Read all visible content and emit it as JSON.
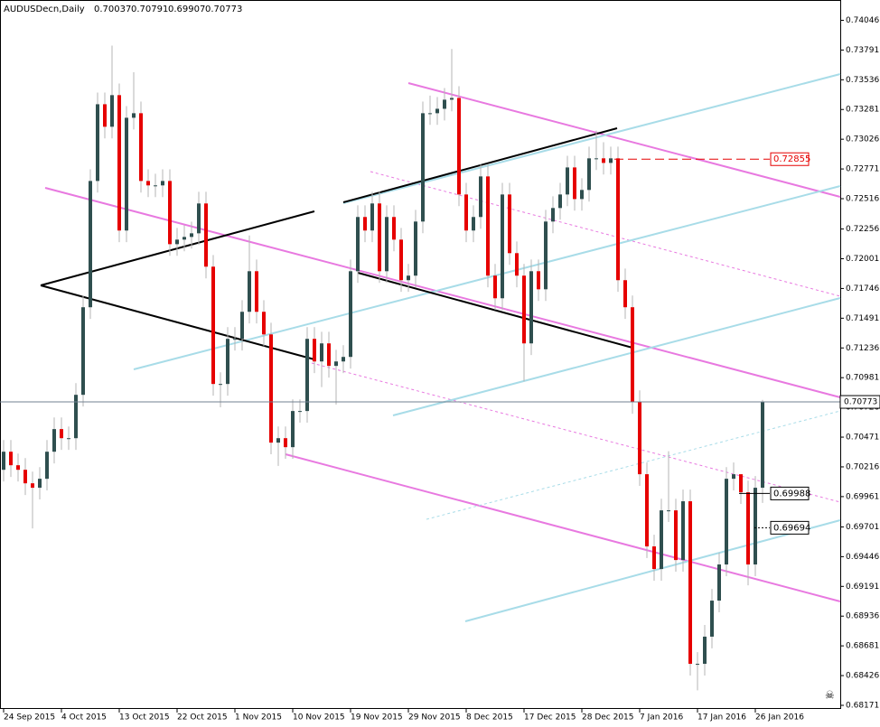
{
  "chart_data": {
    "type": "candlestick",
    "title": "AUDUSDecn,Daily",
    "categories": [
      "24 Sep 2015",
      null,
      null,
      null,
      null,
      null,
      null,
      null,
      "4 Oct 2015",
      null,
      null,
      null,
      null,
      null,
      null,
      null,
      "13 Oct 2015",
      null,
      null,
      null,
      null,
      null,
      null,
      null,
      "22 Oct 2015",
      null,
      null,
      null,
      null,
      null,
      null,
      null,
      "1 Nov 2015",
      null,
      null,
      null,
      null,
      null,
      null,
      null,
      "10 Nov 2015",
      null,
      null,
      null,
      null,
      null,
      null,
      null,
      "19 Nov 2015",
      null,
      null,
      null,
      null,
      null,
      null,
      null,
      "29 Nov 2015",
      null,
      null,
      null,
      null,
      null,
      null,
      null,
      "8 Dec 2015",
      null,
      null,
      null,
      null,
      null,
      null,
      null,
      "17 Dec 2015",
      null,
      null,
      null,
      null,
      null,
      null,
      null,
      "28 Dec 2015",
      null,
      null,
      null,
      null,
      null,
      null,
      null,
      "7 Jan 2016",
      null,
      null,
      null,
      null,
      null,
      null,
      null,
      "17 Jan 2016",
      null,
      null,
      null,
      null,
      null,
      null,
      null,
      "26 Jan 2016",
      null
    ],
    "open": [
      0.70191,
      0.70346,
      0.7023,
      0.70191,
      0.70075,
      0.70037,
      0.70114,
      0.70346,
      0.7054,
      0.70462,
      0.70462,
      0.70834,
      0.71585,
      0.72668,
      0.73326,
      0.73133,
      0.73404,
      0.72243,
      0.7321,
      0.73249,
      0.72668,
      0.7263,
      0.7263,
      0.72668,
      0.72126,
      0.72165,
      0.72188,
      0.72219,
      0.72475,
      0.71933,
      0.70927,
      0.70927,
      0.71314,
      0.71314,
      0.71546,
      0.71894,
      0.71546,
      0.71352,
      0.70424,
      0.70462,
      0.70385,
      0.70695,
      0.70695,
      0.71314,
      0.7112,
      0.71275,
      0.71082,
      0.7112,
      0.71159,
      0.71894,
      0.72359,
      0.72243,
      0.72475,
      0.71894,
      0.72359,
      0.72165,
      0.71817,
      0.71856,
      0.7232,
      0.73249,
      0.73249,
      0.73287,
      0.73365,
      0.7338,
      0.72552,
      0.72243,
      0.72359,
      0.72707,
      0.71856,
      0.71662,
      0.72552,
      0.72049,
      0.71856,
      0.71275,
      0.71894,
      0.71739,
      0.7232,
      0.72436,
      0.72552,
      0.72784,
      0.72513,
      0.72591,
      0.72862,
      0.72862,
      0.72823,
      0.72862,
      0.71817,
      0.71585,
      0.70772,
      0.70153,
      0.69534,
      0.6934,
      0.69843,
      0.69843,
      0.69417,
      0.69921,
      0.68527,
      0.68527,
      0.6876,
      0.69069,
      0.69379,
      0.70114,
      0.70153,
      0.69998,
      0.69379,
      0.70037
    ],
    "high": [
      0.70446,
      0.70446,
      0.7033,
      0.70291,
      0.70175,
      0.70214,
      0.70446,
      0.7064,
      0.7064,
      0.70562,
      0.70934,
      0.71685,
      0.72768,
      0.73426,
      0.73426,
      0.73829,
      0.73504,
      0.7331,
      0.736,
      0.73349,
      0.72768,
      0.7273,
      0.72768,
      0.72768,
      0.72265,
      0.72288,
      0.72319,
      0.72575,
      0.72575,
      0.72033,
      0.71027,
      0.71414,
      0.71414,
      0.71646,
      0.722,
      0.71994,
      0.71646,
      0.71452,
      0.70562,
      0.70562,
      0.70795,
      0.70795,
      0.71414,
      0.71414,
      0.71375,
      0.71375,
      0.7122,
      0.71259,
      0.71994,
      0.72459,
      0.72459,
      0.72575,
      0.72575,
      0.72459,
      0.72459,
      0.72265,
      0.71956,
      0.7242,
      0.73349,
      0.734,
      0.73387,
      0.73465,
      0.738,
      0.7348,
      0.72652,
      0.72459,
      0.72807,
      0.72807,
      0.71956,
      0.72652,
      0.72652,
      0.72149,
      0.71956,
      0.71994,
      0.71994,
      0.7242,
      0.72536,
      0.72652,
      0.72884,
      0.72884,
      0.72691,
      0.72962,
      0.731,
      0.73,
      0.72962,
      0.72962,
      0.71917,
      0.71685,
      0.70872,
      0.70253,
      0.69634,
      0.69943,
      0.7035,
      0.69943,
      0.70021,
      0.70021,
      0.68627,
      0.6886,
      0.69169,
      0.69479,
      0.70214,
      0.70253,
      0.70098,
      0.70098,
      0.70137,
      0.70791
    ],
    "low": [
      0.70091,
      0.7013,
      0.70091,
      0.69975,
      0.69688,
      0.69937,
      0.70014,
      0.70246,
      0.70362,
      0.70362,
      0.70362,
      0.70734,
      0.71485,
      0.72568,
      0.73033,
      0.73033,
      0.72143,
      0.72143,
      0.7311,
      0.72568,
      0.7253,
      0.7253,
      0.7253,
      0.72026,
      0.72026,
      0.72065,
      0.72088,
      0.72119,
      0.71833,
      0.70827,
      0.70727,
      0.70827,
      0.71214,
      0.71214,
      0.71446,
      0.71446,
      0.71252,
      0.70324,
      0.70224,
      0.70285,
      0.70285,
      0.70595,
      0.70595,
      0.7102,
      0.709,
      0.70982,
      0.7075,
      0.7102,
      0.71059,
      0.71794,
      0.72143,
      0.72143,
      0.71794,
      0.71794,
      0.72065,
      0.71717,
      0.71717,
      0.71756,
      0.7222,
      0.73149,
      0.73149,
      0.73187,
      0.73265,
      0.72452,
      0.72143,
      0.72143,
      0.72259,
      0.71756,
      0.71562,
      0.71562,
      0.71949,
      0.71756,
      0.7095,
      0.71175,
      0.71639,
      0.71639,
      0.7222,
      0.72336,
      0.72452,
      0.72413,
      0.72413,
      0.72491,
      0.72762,
      0.72723,
      0.72723,
      0.71717,
      0.71485,
      0.70672,
      0.70053,
      0.69434,
      0.6924,
      0.6924,
      0.69743,
      0.69317,
      0.69317,
      0.68427,
      0.683,
      0.68427,
      0.6866,
      0.68969,
      0.69279,
      0.70014,
      0.69898,
      0.692,
      0.69279,
      0.69907
    ],
    "close": [
      0.70346,
      0.7023,
      0.70191,
      0.70075,
      0.70037,
      0.70114,
      0.70346,
      0.7054,
      0.70462,
      0.70462,
      0.70834,
      0.71585,
      0.72668,
      0.73326,
      0.73133,
      0.73404,
      0.72243,
      0.7321,
      0.73249,
      0.72668,
      0.7263,
      0.7263,
      0.72668,
      0.72126,
      0.72165,
      0.72188,
      0.72219,
      0.72475,
      0.71933,
      0.70927,
      0.70927,
      0.71314,
      0.71314,
      0.71546,
      0.71894,
      0.71546,
      0.71352,
      0.70424,
      0.70462,
      0.70385,
      0.70695,
      0.70695,
      0.71314,
      0.7112,
      0.71275,
      0.71082,
      0.7112,
      0.71159,
      0.71894,
      0.72359,
      0.72243,
      0.72475,
      0.71894,
      0.72359,
      0.72165,
      0.71817,
      0.71856,
      0.7232,
      0.73249,
      0.73249,
      0.73287,
      0.73365,
      0.7338,
      0.72552,
      0.72243,
      0.72359,
      0.72707,
      0.71856,
      0.71662,
      0.72552,
      0.72049,
      0.71856,
      0.71275,
      0.71894,
      0.71739,
      0.7232,
      0.72436,
      0.72552,
      0.72784,
      0.72513,
      0.72591,
      0.72862,
      0.72862,
      0.72823,
      0.72862,
      0.71817,
      0.71585,
      0.70772,
      0.70153,
      0.69534,
      0.6934,
      0.69843,
      0.69843,
      0.69417,
      0.69921,
      0.68527,
      0.68527,
      0.6876,
      0.69069,
      0.69379,
      0.70114,
      0.70153,
      0.69998,
      0.69379,
      0.70037,
      0.70773
    ],
    "up_color": "#2f4f4f",
    "down_color": "#e60000",
    "wick_color": "#b4b4b4",
    "ylim": [
      0.6814,
      0.7422
    ],
    "yticks": [
      0.74046,
      0.73791,
      0.73536,
      0.73281,
      0.73026,
      0.72771,
      0.72516,
      0.72256,
      0.72001,
      0.71746,
      0.71491,
      0.71236,
      0.70981,
      0.70726,
      0.70471,
      0.70216,
      0.69961,
      0.69701,
      0.69446,
      0.69191,
      0.68936,
      0.68681,
      0.68426,
      0.68171
    ],
    "price_lines": [
      {
        "value": 0.72855,
        "color": "#e60000"
      },
      {
        "value": 0.69988,
        "color": "#000000"
      },
      {
        "value": 0.69694,
        "color": "#000000"
      }
    ]
  }
}
